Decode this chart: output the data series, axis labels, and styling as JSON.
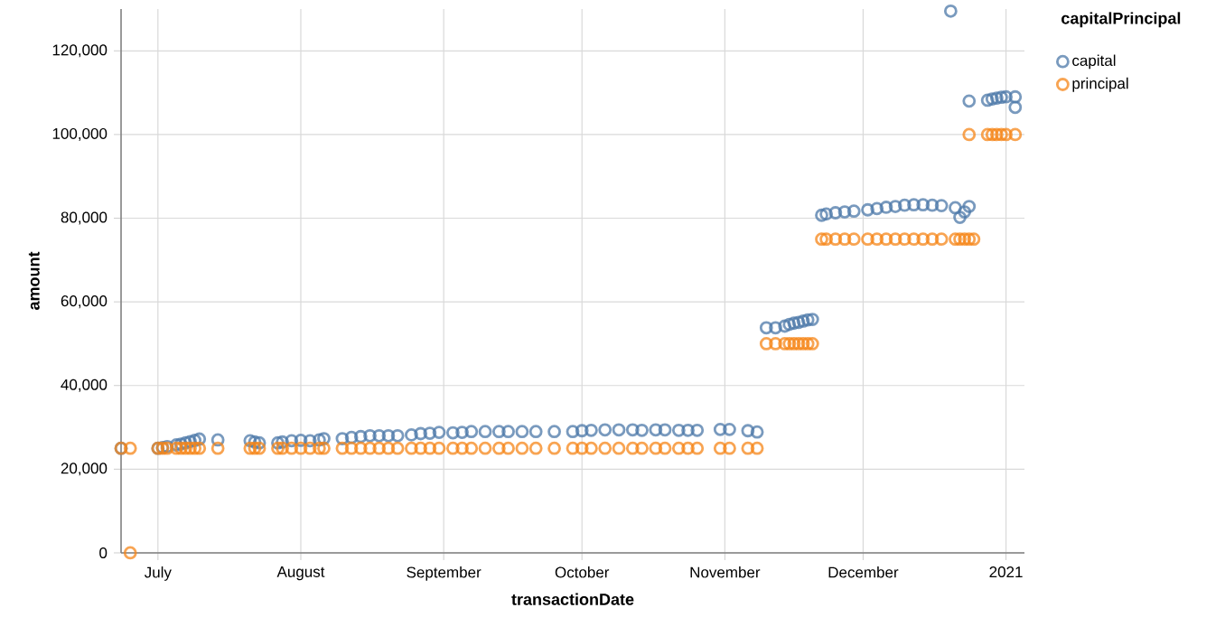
{
  "chart_data": {
    "type": "scatter",
    "xlabel": "transactionDate",
    "ylabel": "amount",
    "legend_title": "capitalPrincipal",
    "xlim": [
      "2020-06-23",
      "2021-01-05"
    ],
    "ylim": [
      0,
      130000
    ],
    "xticks": [
      {
        "value": "2020-07-01",
        "label": "July"
      },
      {
        "value": "2020-08-01",
        "label": "August"
      },
      {
        "value": "2020-09-01",
        "label": "September"
      },
      {
        "value": "2020-10-01",
        "label": "October"
      },
      {
        "value": "2020-11-01",
        "label": "November"
      },
      {
        "value": "2020-12-01",
        "label": "December"
      },
      {
        "value": "2021-01-01",
        "label": "2021"
      }
    ],
    "yticks": [
      0,
      {
        "value": 20000,
        "label": "20,000"
      },
      {
        "value": 40000,
        "label": "40,000"
      },
      {
        "value": 60000,
        "label": "60,000"
      },
      {
        "value": 80000,
        "label": "80,000"
      },
      {
        "value": 100000,
        "label": "100,000"
      },
      {
        "value": 120000,
        "label": "120,000"
      }
    ],
    "grid": true,
    "legend": "right",
    "marker": "circle",
    "series": [
      {
        "name": "capital",
        "color": "#4c78a8",
        "x": [
          "2020-06-23",
          "2020-06-25",
          "2020-07-01",
          "2020-07-02",
          "2020-07-03",
          "2020-07-05",
          "2020-07-06",
          "2020-07-07",
          "2020-07-08",
          "2020-07-09",
          "2020-07-10",
          "2020-07-14",
          "2020-07-21",
          "2020-07-22",
          "2020-07-23",
          "2020-07-27",
          "2020-07-28",
          "2020-07-30",
          "2020-08-01",
          "2020-08-03",
          "2020-08-05",
          "2020-08-06",
          "2020-08-10",
          "2020-08-12",
          "2020-08-14",
          "2020-08-16",
          "2020-08-18",
          "2020-08-20",
          "2020-08-22",
          "2020-08-25",
          "2020-08-27",
          "2020-08-29",
          "2020-08-31",
          "2020-09-03",
          "2020-09-05",
          "2020-09-07",
          "2020-09-10",
          "2020-09-13",
          "2020-09-15",
          "2020-09-18",
          "2020-09-21",
          "2020-09-25",
          "2020-09-29",
          "2020-10-01",
          "2020-10-03",
          "2020-10-06",
          "2020-10-09",
          "2020-10-12",
          "2020-10-14",
          "2020-10-17",
          "2020-10-19",
          "2020-10-22",
          "2020-10-24",
          "2020-10-26",
          "2020-10-31",
          "2020-11-02",
          "2020-11-06",
          "2020-11-08",
          "2020-11-10",
          "2020-11-12",
          "2020-11-14",
          "2020-11-15",
          "2020-11-16",
          "2020-11-17",
          "2020-11-18",
          "2020-11-19",
          "2020-11-20",
          "2020-11-22",
          "2020-11-23",
          "2020-11-25",
          "2020-11-27",
          "2020-11-29",
          "2020-12-02",
          "2020-12-04",
          "2020-12-06",
          "2020-12-08",
          "2020-12-10",
          "2020-12-12",
          "2020-12-14",
          "2020-12-16",
          "2020-12-18",
          "2020-12-20",
          "2020-12-21",
          "2020-12-22",
          "2020-12-23",
          "2020-12-24",
          "2020-12-24",
          "2020-12-28",
          "2020-12-29",
          "2020-12-30",
          "2020-12-31",
          "2021-01-01",
          "2021-01-03",
          "2021-01-03"
        ],
        "values": [
          25000,
          null,
          25000,
          25200,
          25400,
          25800,
          26000,
          26300,
          26600,
          26900,
          27200,
          27000,
          26800,
          26500,
          26300,
          26300,
          26500,
          26800,
          26900,
          26800,
          27000,
          27300,
          27300,
          27600,
          27800,
          28000,
          28000,
          28000,
          28000,
          28200,
          28500,
          28600,
          28800,
          28700,
          28800,
          29000,
          29000,
          29000,
          29000,
          29000,
          29000,
          29000,
          29000,
          29200,
          29300,
          29400,
          29400,
          29400,
          29300,
          29400,
          29400,
          29300,
          29300,
          29300,
          29500,
          29500,
          29200,
          28900,
          53800,
          53800,
          54200,
          54600,
          54900,
          55100,
          55400,
          55700,
          55800,
          80700,
          81000,
          81300,
          81500,
          81700,
          82000,
          82300,
          82600,
          82800,
          83100,
          83200,
          83200,
          83100,
          83000,
          129500,
          82500,
          80200,
          81500,
          82800,
          108000,
          108200,
          108500,
          108700,
          108900,
          109000,
          109000,
          106500
        ]
      },
      {
        "name": "principal",
        "color": "#f58518",
        "x": [
          "2020-06-23",
          "2020-06-25",
          "2020-06-25",
          "2020-07-01",
          "2020-07-02",
          "2020-07-03",
          "2020-07-05",
          "2020-07-06",
          "2020-07-07",
          "2020-07-08",
          "2020-07-09",
          "2020-07-10",
          "2020-07-14",
          "2020-07-21",
          "2020-07-22",
          "2020-07-23",
          "2020-07-27",
          "2020-07-28",
          "2020-07-30",
          "2020-08-01",
          "2020-08-03",
          "2020-08-05",
          "2020-08-06",
          "2020-08-10",
          "2020-08-12",
          "2020-08-14",
          "2020-08-16",
          "2020-08-18",
          "2020-08-20",
          "2020-08-22",
          "2020-08-25",
          "2020-08-27",
          "2020-08-29",
          "2020-08-31",
          "2020-09-03",
          "2020-09-05",
          "2020-09-07",
          "2020-09-10",
          "2020-09-13",
          "2020-09-15",
          "2020-09-18",
          "2020-09-21",
          "2020-09-25",
          "2020-09-29",
          "2020-10-01",
          "2020-10-03",
          "2020-10-06",
          "2020-10-09",
          "2020-10-12",
          "2020-10-14",
          "2020-10-17",
          "2020-10-19",
          "2020-10-22",
          "2020-10-24",
          "2020-10-26",
          "2020-10-31",
          "2020-11-02",
          "2020-11-06",
          "2020-11-08",
          "2020-11-10",
          "2020-11-12",
          "2020-11-14",
          "2020-11-15",
          "2020-11-16",
          "2020-11-17",
          "2020-11-18",
          "2020-11-19",
          "2020-11-20",
          "2020-11-22",
          "2020-11-23",
          "2020-11-25",
          "2020-11-27",
          "2020-11-29",
          "2020-12-02",
          "2020-12-04",
          "2020-12-06",
          "2020-12-08",
          "2020-12-10",
          "2020-12-12",
          "2020-12-14",
          "2020-12-16",
          "2020-12-18",
          "2020-12-21",
          "2020-12-22",
          "2020-12-23",
          "2020-12-24",
          "2020-12-25",
          "2020-12-24",
          "2020-12-28",
          "2020-12-29",
          "2020-12-30",
          "2020-12-31",
          "2021-01-01",
          "2021-01-03"
        ],
        "values": [
          25000,
          25000,
          0,
          25000,
          25000,
          25000,
          25000,
          25000,
          25000,
          25000,
          25000,
          25000,
          25000,
          25000,
          25000,
          25000,
          25000,
          25000,
          25000,
          25000,
          25000,
          25000,
          25000,
          25000,
          25000,
          25000,
          25000,
          25000,
          25000,
          25000,
          25000,
          25000,
          25000,
          25000,
          25000,
          25000,
          25000,
          25000,
          25000,
          25000,
          25000,
          25000,
          25000,
          25000,
          25000,
          25000,
          25000,
          25000,
          25000,
          25000,
          25000,
          25000,
          25000,
          25000,
          25000,
          25000,
          25000,
          25000,
          25000,
          50000,
          50000,
          50000,
          50000,
          50000,
          50000,
          50000,
          50000,
          50000,
          75000,
          75000,
          75000,
          75000,
          75000,
          75000,
          75000,
          75000,
          75000,
          75000,
          75000,
          75000,
          75000,
          75000,
          75000,
          75000,
          75000,
          75000,
          75000,
          100000,
          100000,
          100000,
          100000,
          100000,
          100000,
          100000
        ]
      }
    ]
  }
}
